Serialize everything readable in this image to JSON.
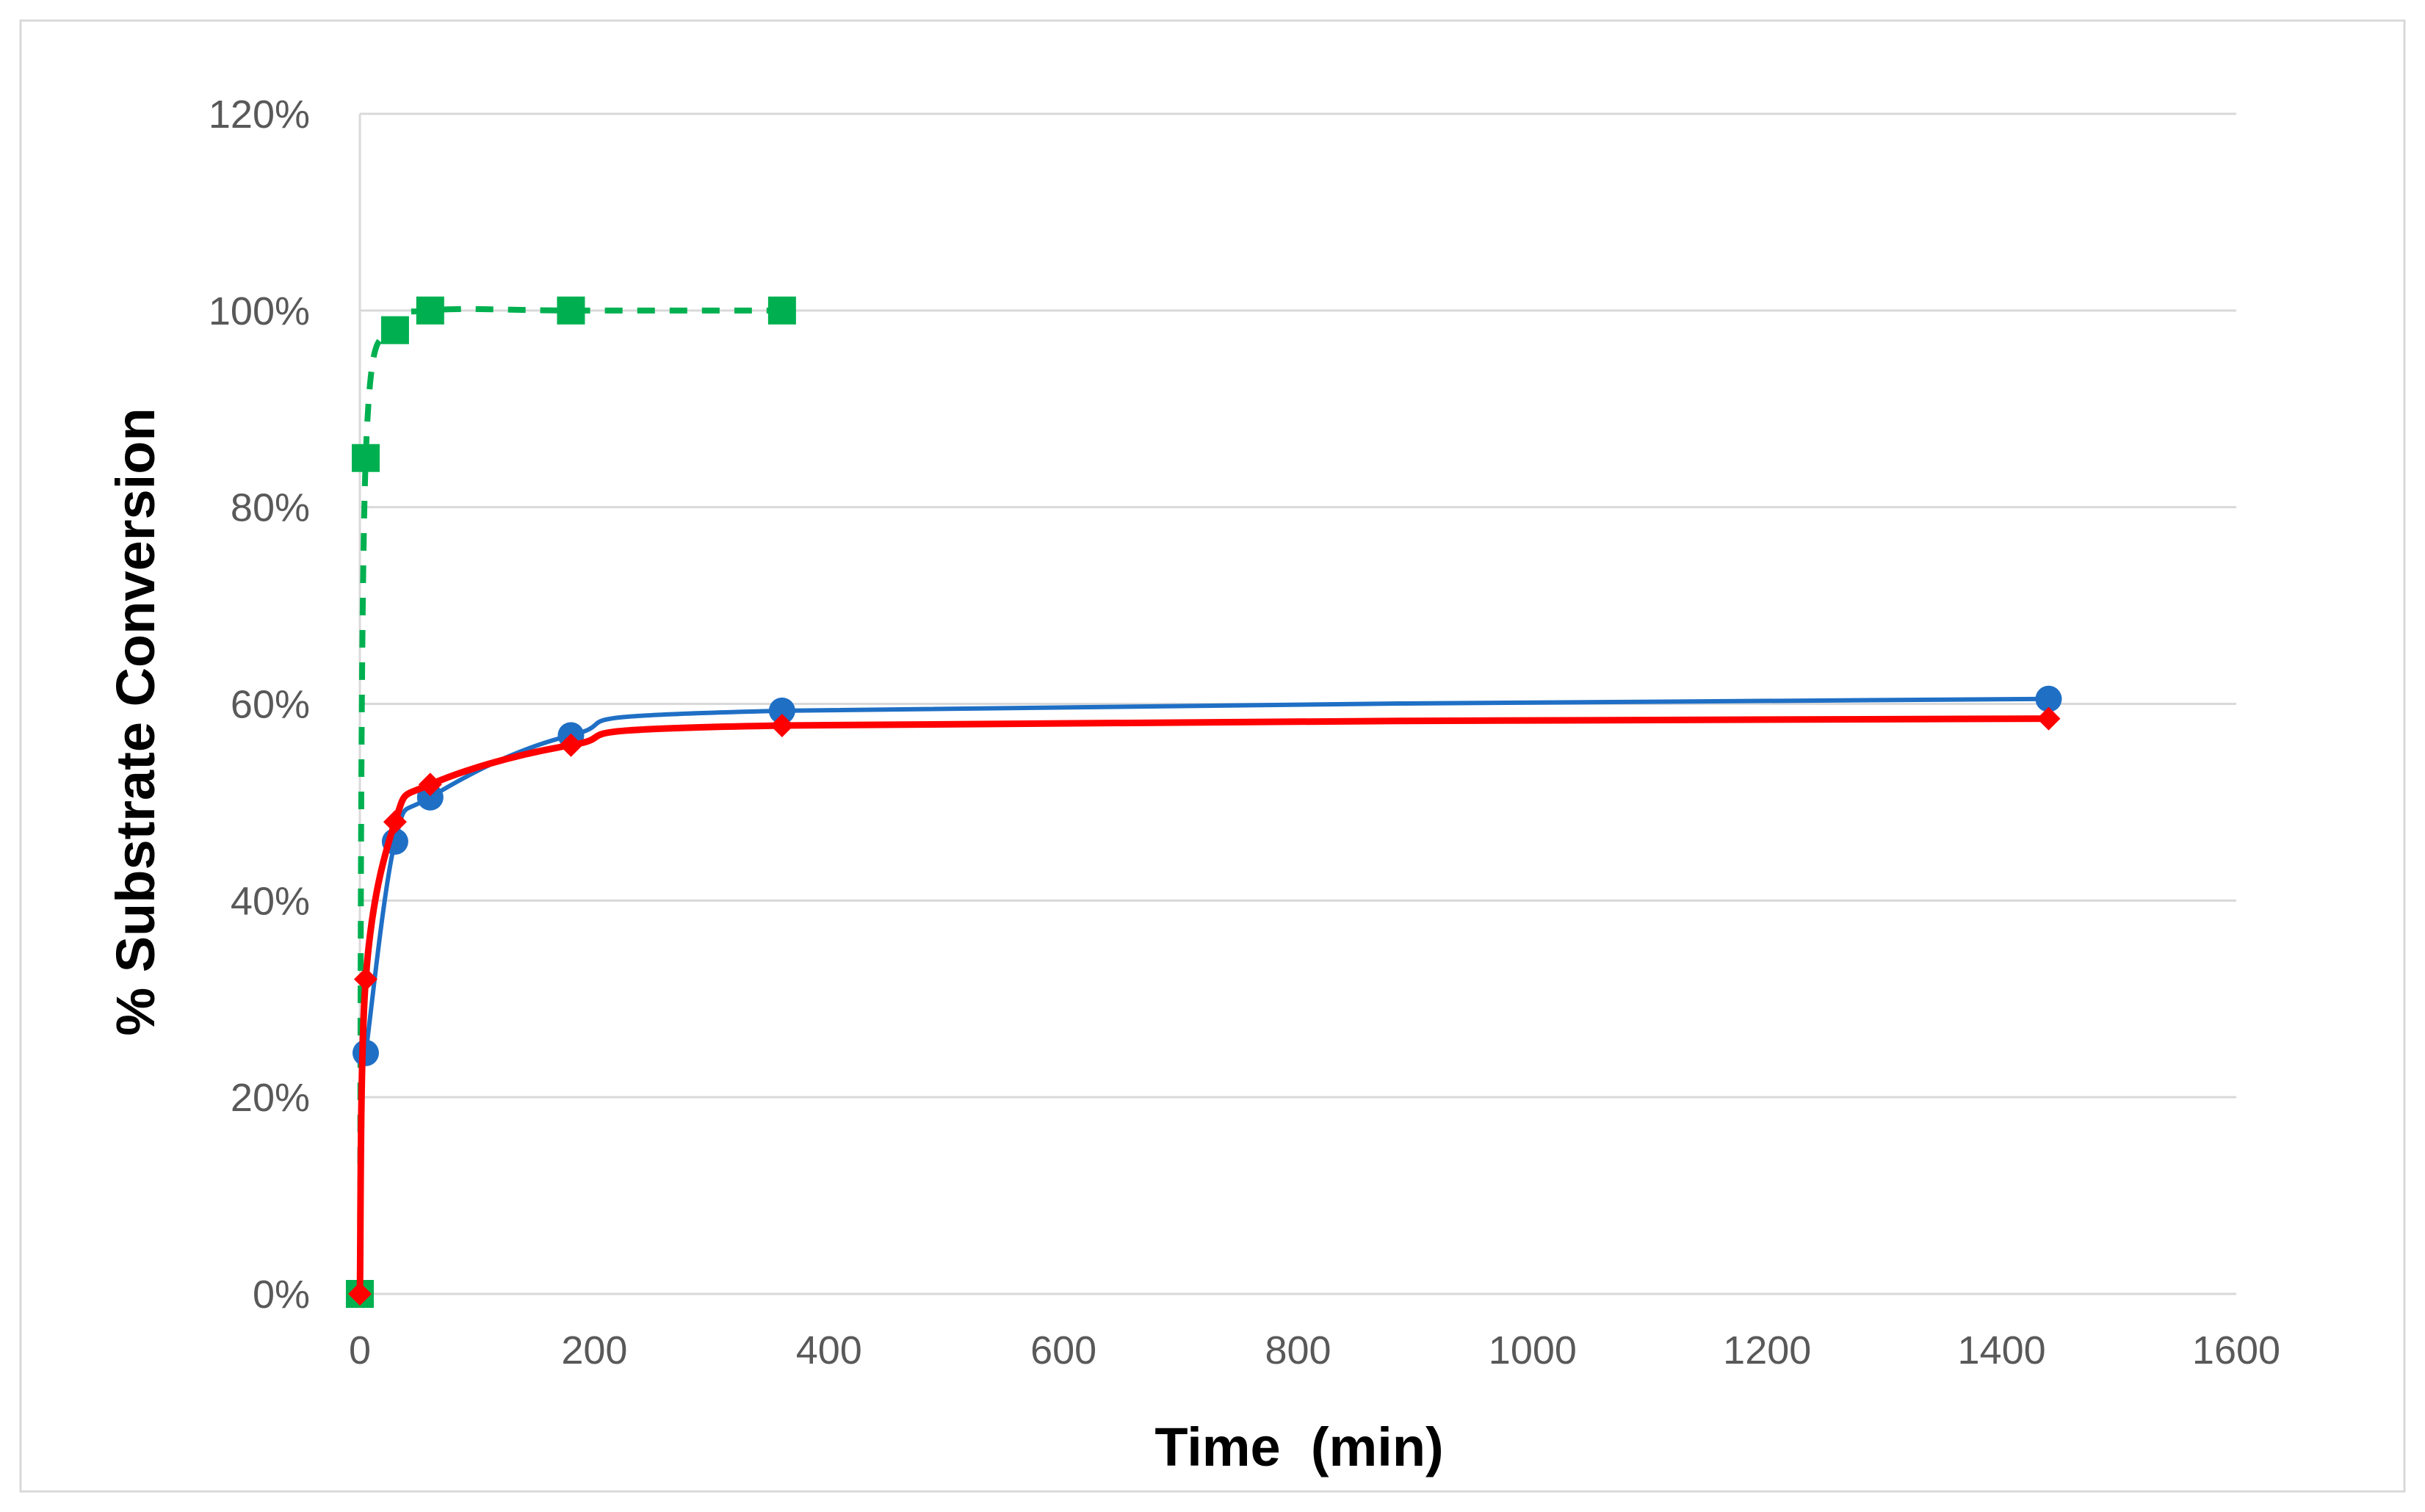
{
  "chart_data": {
    "type": "line",
    "xlabel": "Time  (min)",
    "ylabel": "% Substrate Conversion",
    "xlim": [
      0,
      1600
    ],
    "ylim": [
      0,
      1.2
    ],
    "x_ticks": [
      0,
      200,
      400,
      600,
      800,
      1000,
      1200,
      1400,
      1600
    ],
    "x_tick_labels": [
      "0",
      "200",
      "400",
      "600",
      "800",
      "1000",
      "1200",
      "1400",
      "1600"
    ],
    "y_ticks": [
      0,
      0.2,
      0.4,
      0.6,
      0.8,
      1.0,
      1.2
    ],
    "y_tick_labels": [
      "0%",
      "20%",
      "40%",
      "60%",
      "80%",
      "100%",
      "120%"
    ],
    "grid": "horizontal",
    "legend": "none",
    "series": [
      {
        "color": "#1f6fc5",
        "marker": "circle",
        "line_style": "solid",
        "x": [
          5,
          30,
          60,
          180,
          360,
          1440
        ],
        "y": [
          0.245,
          0.46,
          0.505,
          0.568,
          0.593,
          0.605
        ]
      },
      {
        "color": "#ff0000",
        "marker": "diamond",
        "line_style": "solid",
        "x": [
          0,
          5,
          30,
          60,
          180,
          360,
          1440
        ],
        "y": [
          0,
          0.32,
          0.48,
          0.518,
          0.558,
          0.578,
          0.585
        ]
      },
      {
        "color": "#00b050",
        "marker": "square",
        "line_style": "dashed",
        "x": [
          0,
          5,
          30,
          60,
          180,
          360
        ],
        "y": [
          0,
          0.85,
          0.98,
          1.0,
          1.0,
          1.0
        ]
      }
    ]
  }
}
